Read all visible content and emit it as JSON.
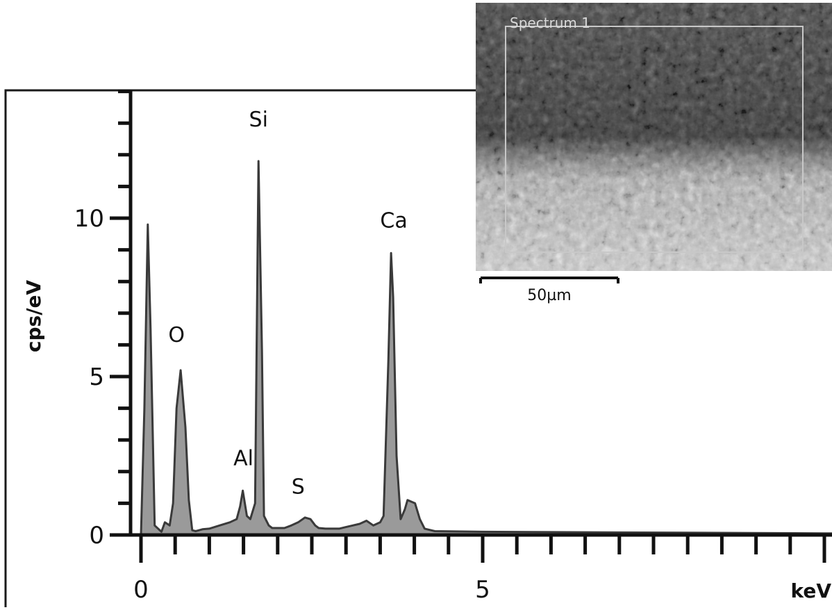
{
  "chart_data": {
    "type": "area",
    "title": "",
    "xlabel": "keV",
    "ylabel": "cps/eV",
    "xlim": [
      -0.2,
      10.2
    ],
    "ylim": [
      0,
      14
    ],
    "x_ticks": [
      {
        "value": 0,
        "label": "0"
      },
      {
        "value": 5,
        "label": "5"
      }
    ],
    "y_ticks": [
      {
        "value": 0,
        "label": "0"
      },
      {
        "value": 5,
        "label": "5"
      },
      {
        "value": 10,
        "label": "10"
      }
    ],
    "grid": false,
    "legend": "none",
    "series": [
      {
        "fill_color": "#9a9a9a",
        "line_color": "#3a3a3a",
        "x": [
          0,
          0.05,
          0.1,
          0.14,
          0.2,
          0.3,
          0.35,
          0.42,
          0.47,
          0.52,
          0.58,
          0.65,
          0.7,
          0.75,
          0.8,
          0.85,
          0.9,
          1.0,
          1.15,
          1.3,
          1.4,
          1.45,
          1.49,
          1.55,
          1.6,
          1.67,
          1.72,
          1.77,
          1.8,
          1.87,
          1.92,
          2.0,
          2.1,
          2.2,
          2.3,
          2.4,
          2.48,
          2.55,
          2.6,
          2.7,
          2.8,
          2.9,
          3.0,
          3.1,
          3.2,
          3.3,
          3.4,
          3.5,
          3.55,
          3.62,
          3.66,
          3.69,
          3.74,
          3.8,
          3.86,
          3.9,
          4.01,
          4.08,
          4.15,
          4.3,
          5.0,
          6.0,
          7.0,
          8.0,
          9.0,
          10.0,
          10.2
        ],
        "y": [
          0,
          4.0,
          9.8,
          6.5,
          0.3,
          0.1,
          0.4,
          0.3,
          1.0,
          4.0,
          5.2,
          3.4,
          1.1,
          0.15,
          0.12,
          0.15,
          0.18,
          0.2,
          0.3,
          0.4,
          0.5,
          0.9,
          1.4,
          0.6,
          0.5,
          1.0,
          11.8,
          5.8,
          0.6,
          0.3,
          0.22,
          0.22,
          0.22,
          0.3,
          0.4,
          0.55,
          0.5,
          0.3,
          0.22,
          0.2,
          0.2,
          0.2,
          0.25,
          0.3,
          0.35,
          0.45,
          0.3,
          0.4,
          0.6,
          5.5,
          8.9,
          7.5,
          2.5,
          0.5,
          0.8,
          1.1,
          1.0,
          0.5,
          0.2,
          0.12,
          0.1,
          0.09,
          0.08,
          0.07,
          0.06,
          0.05,
          0.05
        ]
      }
    ],
    "peak_labels": [
      {
        "text": "O",
        "x": 0.52,
        "y": 6.1
      },
      {
        "text": "Al",
        "x": 1.5,
        "y": 2.2
      },
      {
        "text": "Si",
        "x": 1.72,
        "y": 12.9
      },
      {
        "text": "S",
        "x": 2.3,
        "y": 1.3
      },
      {
        "text": "Ca",
        "x": 3.7,
        "y": 9.7
      }
    ]
  },
  "inset": {
    "spectrum_label": "Spectrum 1",
    "scale_bar_label": "50µm"
  }
}
